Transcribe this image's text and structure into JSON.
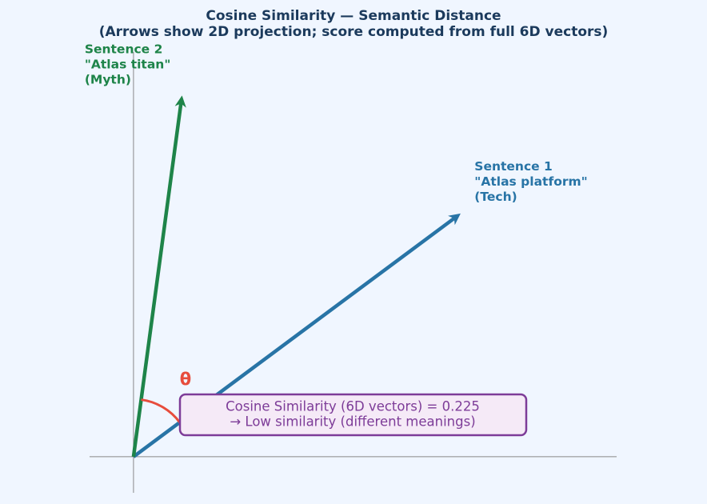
{
  "chart_data": {
    "type": "vector",
    "title": "Cosine Similarity — Semantic Distance",
    "subtitle": "(Arrows show 2D projection; score computed from full 6D vectors)",
    "xlim": [
      -0.11,
      1.21
    ],
    "ylim": [
      -0.09,
      1.01
    ],
    "series": [
      {
        "name": "Sentence 1",
        "label_lines": [
          "\"Atlas platform\"",
          "(Tech)"
        ],
        "color": "#2874a6",
        "x": 0.81,
        "y": 0.6
      },
      {
        "name": "Sentence 2",
        "label_lines": [
          "\"Atlas titan\"",
          "(Myth)"
        ],
        "color": "#1e8449",
        "x": 0.12,
        "y": 0.89
      }
    ],
    "angle_label": "θ",
    "angle_color": "#e74c3c",
    "annotation": [
      "Cosine Similarity (6D vectors) = 0.225",
      "→ Low similarity (different meanings)"
    ]
  }
}
